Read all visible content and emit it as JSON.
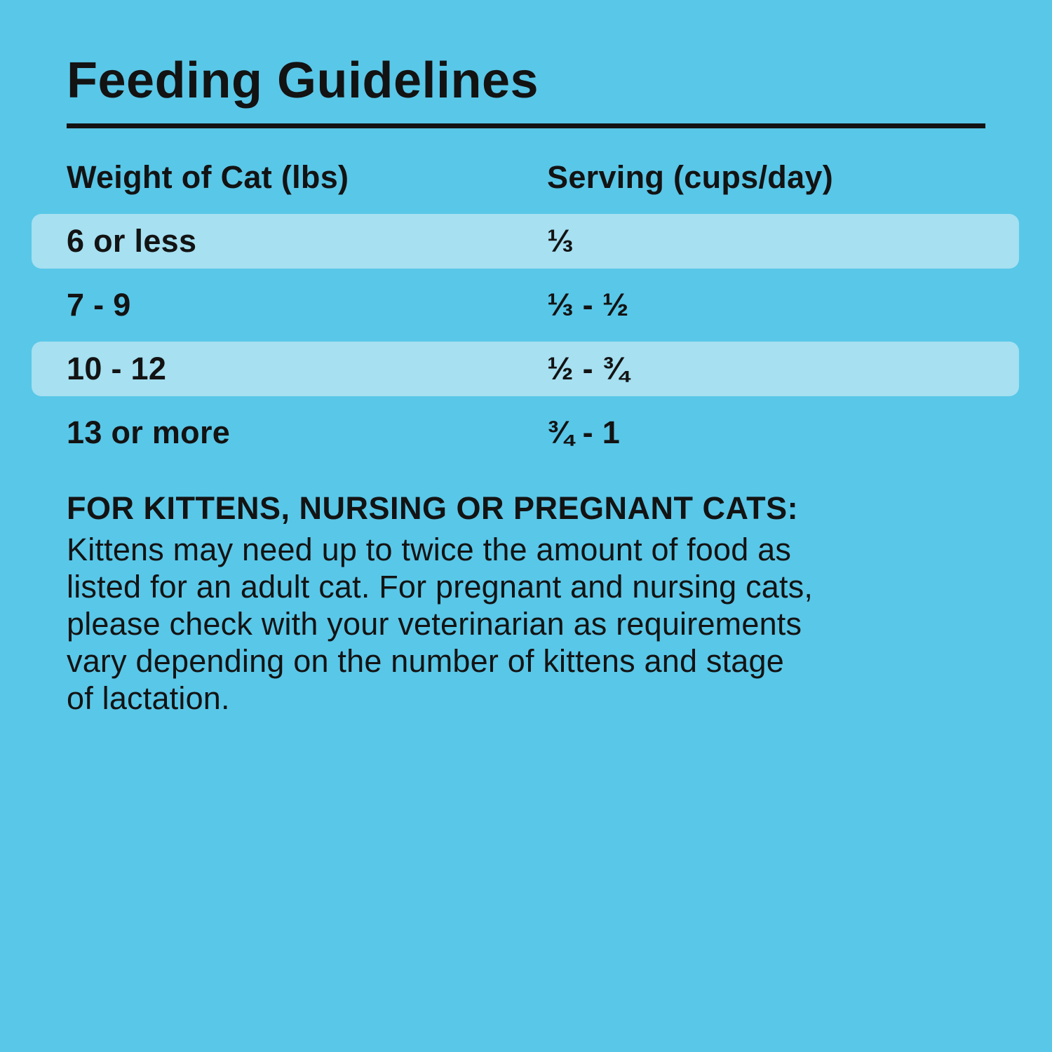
{
  "page": {
    "background_color": "#59C7E8",
    "row_highlight_color": "#A6E0F1",
    "text_color": "#131313"
  },
  "title": "Feeding Guidelines",
  "table": {
    "columns": [
      "Weight of Cat (lbs)",
      "Serving (cups/day)"
    ],
    "rows": [
      {
        "weight": "6 or less",
        "serving": "⅓",
        "highlighted": true
      },
      {
        "weight": "7 - 9",
        "serving": "⅓ - ½",
        "highlighted": false
      },
      {
        "weight": "10 - 12",
        "serving": "½ - ¾",
        "highlighted": true
      },
      {
        "weight": "13 or more",
        "serving": "¾ - 1",
        "highlighted": false
      }
    ]
  },
  "note": {
    "heading": "FOR KITTENS, NURSING OR PREGNANT CATS:",
    "body_lines": [
      "Kittens may need up to twice the amount of food as",
      "listed for an adult cat. For pregnant and nursing cats,",
      "please check with your veterinarian as requirements",
      "vary depending on the number of kittens and stage",
      "of lactation."
    ]
  }
}
